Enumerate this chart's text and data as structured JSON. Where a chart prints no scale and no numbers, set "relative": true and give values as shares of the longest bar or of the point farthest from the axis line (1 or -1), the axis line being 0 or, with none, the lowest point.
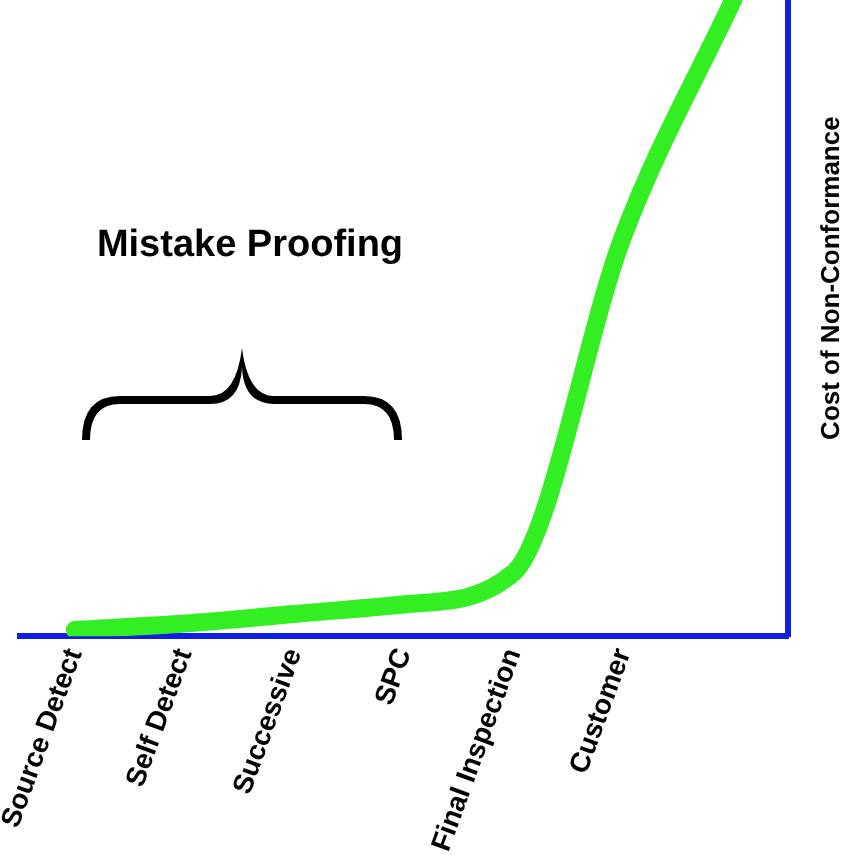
{
  "chart_data": {
    "type": "line",
    "relative": true,
    "ylabel": "Cost of Non-Conformance",
    "annotations": [
      "Mistake Proofing"
    ],
    "categories": [
      "Source Detect",
      "Self Detect",
      "Successive",
      "SPC",
      "Final Inspection",
      "Customer",
      null
    ],
    "series": [
      {
        "color": "#33ee22",
        "values": [
          0.01,
          0.02,
          0.035,
          0.05,
          0.1,
          0.63,
          1
        ]
      }
    ],
    "marker": "none",
    "line_style": "solid",
    "grid": false,
    "legend": false
  }
}
